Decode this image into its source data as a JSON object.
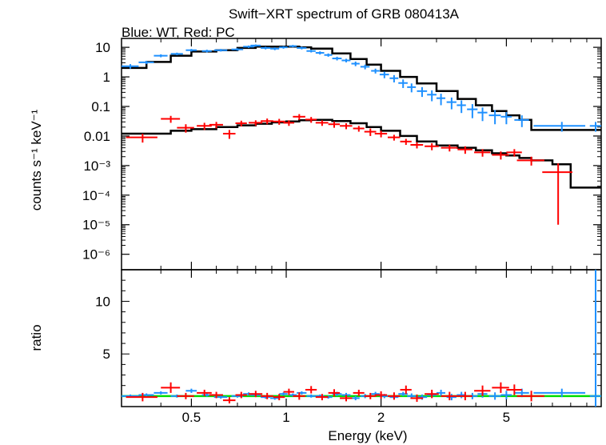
{
  "title": "Swift−XRT spectrum of GRB 080413A",
  "subtitle": "Blue: WT, Red: PC",
  "colors": {
    "wt": "#1e90ff",
    "pc": "#ff0000",
    "model": "#000000",
    "unity": "#00dd00"
  },
  "chart_data": [
    {
      "type": "scatter",
      "panel": "spectrum",
      "xlabel": "Energy (keV)",
      "ylabel": "counts s⁻¹ keV⁻¹",
      "xscale": "log",
      "yscale": "log",
      "xlim": [
        0.3,
        10
      ],
      "ylim": [
        3e-07,
        20
      ],
      "y_tick_labels": [
        "10",
        "1",
        "0.1",
        "0.01",
        "10⁻³",
        "10⁻⁴",
        "10⁻⁵",
        "10⁻⁶"
      ],
      "series": [
        {
          "key": "wt",
          "x": [
            0.32,
            0.36,
            0.4,
            0.45,
            0.5,
            0.56,
            0.62,
            0.7,
            0.76,
            0.8,
            0.86,
            0.92,
            0.98,
            1.05,
            1.12,
            1.2,
            1.28,
            1.36,
            1.45,
            1.55,
            1.66,
            1.78,
            1.92,
            2.05,
            2.2,
            2.35,
            2.5,
            2.7,
            2.9,
            3.1,
            3.35,
            3.6,
            3.9,
            4.2,
            4.6,
            5.0,
            5.6,
            7.5,
            9.6
          ],
          "y": [
            2.3,
            3.1,
            5.2,
            6.0,
            8.0,
            7.5,
            8.0,
            8.5,
            10.5,
            11.5,
            9.5,
            9.0,
            10.0,
            11.0,
            9.5,
            7.5,
            6.5,
            5.5,
            4.2,
            3.6,
            2.8,
            2.2,
            1.6,
            1.2,
            0.9,
            0.62,
            0.45,
            0.33,
            0.25,
            0.19,
            0.14,
            0.11,
            0.08,
            0.062,
            0.05,
            0.045,
            0.035,
            0.022,
            0.022
          ],
          "yerr": [
            0.4,
            0.4,
            0.6,
            0.6,
            0.8,
            0.8,
            0.8,
            0.8,
            1.0,
            1.0,
            1.0,
            1.0,
            1.0,
            1.0,
            1.0,
            0.8,
            0.8,
            0.7,
            0.6,
            0.5,
            0.5,
            0.4,
            0.3,
            0.3,
            0.25,
            0.2,
            0.15,
            0.12,
            0.1,
            0.08,
            0.06,
            0.05,
            0.04,
            0.03,
            0.025,
            0.02,
            0.015,
            0.008,
            0.008
          ],
          "xerr": [
            0.02,
            0.02,
            0.02,
            0.02,
            0.02,
            0.02,
            0.03,
            0.03,
            0.03,
            0.03,
            0.03,
            0.03,
            0.03,
            0.03,
            0.04,
            0.04,
            0.04,
            0.04,
            0.05,
            0.05,
            0.05,
            0.06,
            0.06,
            0.07,
            0.07,
            0.08,
            0.08,
            0.1,
            0.1,
            0.1,
            0.12,
            0.12,
            0.15,
            0.15,
            0.2,
            0.2,
            0.3,
            1.4,
            0.4
          ]
        },
        {
          "key": "pc",
          "x": [
            0.35,
            0.43,
            0.48,
            0.55,
            0.6,
            0.66,
            0.72,
            0.8,
            0.87,
            0.95,
            1.02,
            1.1,
            1.2,
            1.3,
            1.42,
            1.55,
            1.7,
            1.85,
            2.0,
            2.2,
            2.4,
            2.6,
            2.9,
            3.3,
            3.7,
            4.2,
            4.8,
            5.3,
            6.0,
            7.3
          ],
          "y": [
            0.009,
            0.038,
            0.019,
            0.022,
            0.024,
            0.012,
            0.027,
            0.028,
            0.032,
            0.031,
            0.028,
            0.045,
            0.036,
            0.028,
            0.025,
            0.022,
            0.018,
            0.014,
            0.012,
            0.009,
            0.0065,
            0.005,
            0.0045,
            0.004,
            0.0035,
            0.0028,
            0.0023,
            0.0028,
            0.0015,
            0.0006
          ],
          "yerr": [
            0.003,
            0.01,
            0.006,
            0.006,
            0.006,
            0.004,
            0.006,
            0.006,
            0.007,
            0.007,
            0.006,
            0.01,
            0.008,
            0.006,
            0.006,
            0.005,
            0.004,
            0.004,
            0.003,
            0.002,
            0.0015,
            0.0012,
            0.0012,
            0.001,
            0.001,
            0.0008,
            0.0007,
            0.0008,
            0.0005,
            0.00059
          ],
          "xerr": [
            0.04,
            0.03,
            0.03,
            0.03,
            0.03,
            0.03,
            0.03,
            0.04,
            0.04,
            0.04,
            0.04,
            0.05,
            0.05,
            0.06,
            0.06,
            0.07,
            0.07,
            0.08,
            0.09,
            0.1,
            0.1,
            0.12,
            0.15,
            0.2,
            0.2,
            0.25,
            0.3,
            0.3,
            0.6,
            0.8
          ]
        },
        {
          "key": "wt_model",
          "x": [
            0.3,
            0.36,
            0.43,
            0.5,
            0.6,
            0.7,
            0.8,
            0.9,
            1.0,
            1.1,
            1.2,
            1.4,
            1.6,
            1.8,
            2.0,
            2.3,
            2.6,
            3.0,
            3.5,
            4.0,
            4.5,
            5.0,
            5.5,
            6.0,
            10.0
          ],
          "y": [
            2.0,
            3.2,
            5.2,
            7.2,
            8.0,
            9.5,
            10.5,
            10.5,
            10.5,
            10.0,
            9.0,
            6.2,
            4.0,
            2.6,
            1.6,
            1.0,
            0.6,
            0.33,
            0.18,
            0.11,
            0.07,
            0.05,
            0.035,
            0.016,
            0.003
          ]
        },
        {
          "key": "pc_model",
          "x": [
            0.3,
            0.43,
            0.5,
            0.6,
            0.7,
            0.8,
            0.9,
            1.0,
            1.1,
            1.2,
            1.4,
            1.6,
            1.8,
            2.0,
            2.3,
            2.6,
            3.0,
            3.5,
            4.0,
            4.5,
            5.0,
            5.5,
            6.0,
            7.0,
            8.0,
            10.0
          ],
          "y": [
            0.012,
            0.015,
            0.017,
            0.02,
            0.023,
            0.026,
            0.029,
            0.031,
            0.034,
            0.035,
            0.032,
            0.027,
            0.02,
            0.015,
            0.01,
            0.0065,
            0.0048,
            0.004,
            0.0033,
            0.0026,
            0.0022,
            0.0018,
            0.0015,
            0.0011,
            0.00018,
            0.00016
          ]
        }
      ]
    },
    {
      "type": "scatter",
      "panel": "ratio",
      "xlabel": "Energy (keV)",
      "ylabel": "ratio",
      "xscale": "log",
      "xlim": [
        0.3,
        10
      ],
      "ylim": [
        0,
        13
      ],
      "y_ticks": [
        5,
        10
      ],
      "x_ticks": [
        0.5,
        1,
        2,
        5
      ],
      "x_tick_labels": [
        "0.5",
        "1",
        "2",
        "5"
      ],
      "reference_line": 1,
      "series": [
        {
          "key": "wt",
          "x": [
            0.32,
            0.36,
            0.4,
            0.45,
            0.5,
            0.56,
            0.62,
            0.7,
            0.76,
            0.8,
            0.86,
            0.92,
            0.98,
            1.05,
            1.12,
            1.2,
            1.28,
            1.36,
            1.45,
            1.55,
            1.66,
            1.78,
            1.92,
            2.05,
            2.2,
            2.35,
            2.5,
            2.7,
            2.9,
            3.1,
            3.35,
            3.6,
            3.9,
            4.2,
            4.6,
            5.0,
            5.6,
            7.5,
            9.6
          ],
          "y": [
            1.0,
            1.1,
            1.3,
            1.0,
            1.5,
            1.1,
            0.9,
            1.0,
            1.2,
            1.1,
            0.9,
            0.8,
            1.2,
            1.1,
            1.3,
            1.0,
            1.0,
            0.9,
            1.2,
            1.1,
            0.8,
            1.0,
            1.2,
            1.0,
            0.9,
            1.2,
            1.0,
            0.9,
            1.1,
            1.3,
            0.9,
            1.1,
            1.0,
            1.2,
            1.0,
            1.1,
            1.3,
            1.3,
            1.0
          ],
          "yerr": [
            0.15,
            0.15,
            0.15,
            0.15,
            0.2,
            0.15,
            0.15,
            0.15,
            0.15,
            0.15,
            0.15,
            0.15,
            0.15,
            0.15,
            0.15,
            0.15,
            0.15,
            0.15,
            0.2,
            0.2,
            0.2,
            0.2,
            0.2,
            0.2,
            0.2,
            0.2,
            0.25,
            0.25,
            0.25,
            0.3,
            0.3,
            0.3,
            0.3,
            0.35,
            0.35,
            0.4,
            0.4,
            0.4,
            12.0
          ],
          "xerr": [
            0.02,
            0.02,
            0.02,
            0.02,
            0.02,
            0.02,
            0.03,
            0.03,
            0.03,
            0.03,
            0.03,
            0.03,
            0.03,
            0.03,
            0.04,
            0.04,
            0.04,
            0.04,
            0.05,
            0.05,
            0.05,
            0.06,
            0.06,
            0.07,
            0.07,
            0.08,
            0.08,
            0.1,
            0.1,
            0.1,
            0.12,
            0.12,
            0.15,
            0.15,
            0.2,
            0.2,
            0.3,
            1.4,
            0.4
          ]
        },
        {
          "key": "pc",
          "x": [
            0.35,
            0.43,
            0.48,
            0.55,
            0.6,
            0.66,
            0.72,
            0.8,
            0.87,
            0.95,
            1.02,
            1.1,
            1.2,
            1.3,
            1.42,
            1.55,
            1.7,
            1.85,
            2.0,
            2.2,
            2.4,
            2.6,
            2.9,
            3.3,
            3.7,
            4.2,
            4.8,
            5.3,
            6.0
          ],
          "y": [
            0.9,
            1.8,
            1.0,
            1.3,
            1.1,
            0.6,
            1.1,
            1.2,
            1.0,
            0.9,
            1.4,
            1.0,
            1.6,
            0.9,
            1.3,
            0.8,
            1.3,
            1.0,
            1.1,
            1.0,
            1.6,
            0.8,
            1.2,
            1.0,
            1.0,
            1.5,
            1.8,
            1.6,
            1.0
          ],
          "yerr": [
            0.4,
            0.5,
            0.3,
            0.3,
            0.3,
            0.3,
            0.3,
            0.3,
            0.3,
            0.3,
            0.3,
            0.35,
            0.35,
            0.3,
            0.35,
            0.3,
            0.3,
            0.3,
            0.35,
            0.35,
            0.4,
            0.35,
            0.4,
            0.4,
            0.4,
            0.5,
            0.5,
            0.5,
            0.5
          ],
          "xerr": [
            0.04,
            0.03,
            0.03,
            0.03,
            0.03,
            0.03,
            0.03,
            0.04,
            0.04,
            0.04,
            0.04,
            0.05,
            0.05,
            0.06,
            0.06,
            0.07,
            0.07,
            0.08,
            0.09,
            0.1,
            0.1,
            0.12,
            0.15,
            0.2,
            0.2,
            0.25,
            0.3,
            0.3,
            0.6
          ]
        }
      ]
    }
  ]
}
